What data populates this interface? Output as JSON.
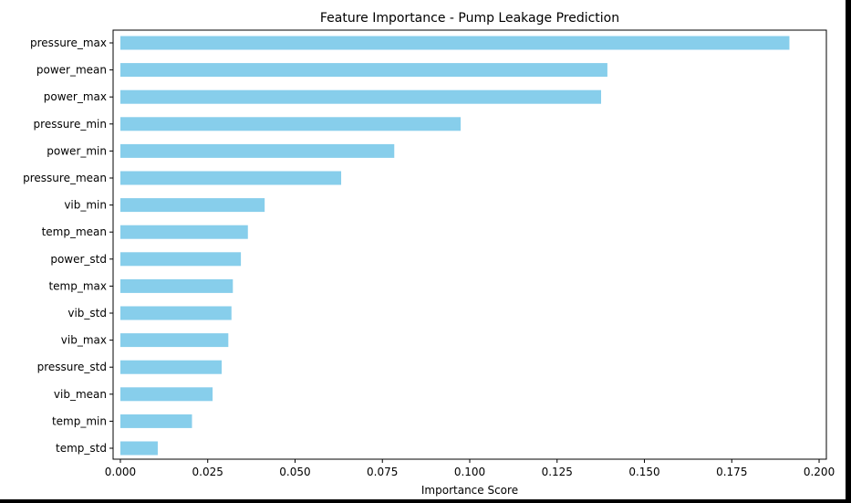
{
  "colors": {
    "bar": "#87CEEB",
    "page": "#ffffff",
    "frame": "#000000"
  },
  "chart_data": {
    "type": "bar",
    "orientation": "horizontal",
    "title": "Feature Importance - Pump Leakage Prediction",
    "xlabel": "Importance Score",
    "ylabel": "",
    "xlim": [
      0,
      0.2
    ],
    "xticks": [
      "0.000",
      "0.025",
      "0.050",
      "0.075",
      "0.100",
      "0.125",
      "0.150",
      "0.175",
      "0.200"
    ],
    "grid": false,
    "legend": "none",
    "categories": [
      "pressure_max",
      "power_mean",
      "power_max",
      "pressure_min",
      "power_min",
      "pressure_mean",
      "vib_min",
      "temp_mean",
      "power_std",
      "temp_max",
      "vib_std",
      "vib_max",
      "pressure_std",
      "vib_mean",
      "temp_min",
      "temp_std"
    ],
    "values": [
      0.1915,
      0.1394,
      0.1376,
      0.0974,
      0.0784,
      0.0632,
      0.0413,
      0.0365,
      0.0345,
      0.0322,
      0.0318,
      0.0309,
      0.029,
      0.0264,
      0.0205,
      0.0107
    ]
  }
}
